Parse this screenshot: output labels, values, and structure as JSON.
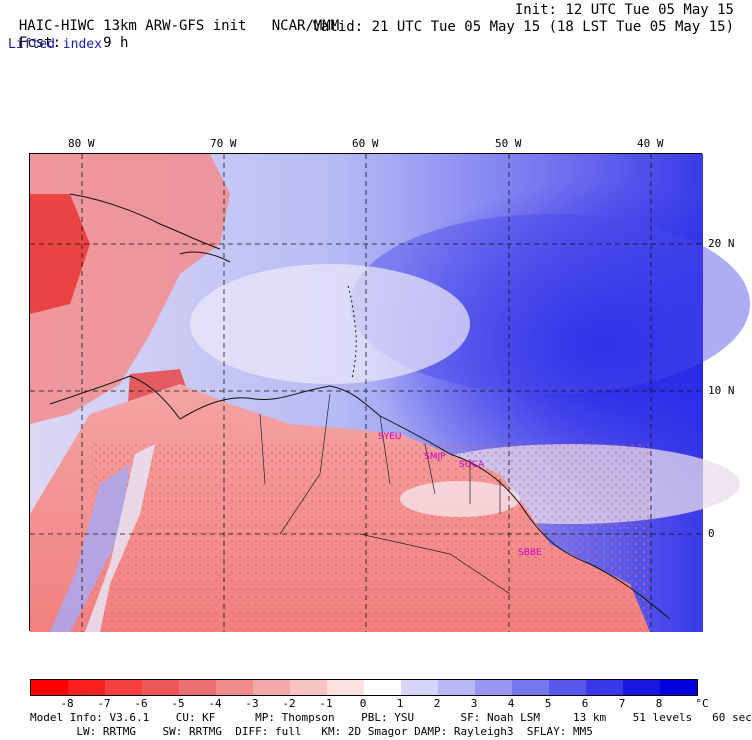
{
  "header": {
    "model": "HAIC-HIWC 13km ARW-GFS init",
    "org": "NCAR/MMM",
    "init": "Init: 12 UTC Tue 05 May 15",
    "fcst_label": "Fcst:",
    "fcst_value": "9 h",
    "valid": "Valid: 21 UTC Tue 05 May 15 (18 LST Tue 05 May 15)",
    "field": "Lifted index"
  },
  "map": {
    "lon_labels": [
      "80 W",
      "70 W",
      "60 W",
      "50 W",
      "40 W"
    ],
    "lat_labels": [
      "20 N",
      "10 N",
      "0"
    ],
    "cities": [
      "SYEU",
      "SMJP",
      "SOCA",
      "SBBE"
    ],
    "colors": {
      "ocean_strong": "#2a2aee",
      "ocean_mid": "#6a6af0",
      "ocean_light": "#c8ccf8",
      "land_warm": "#f28c8c",
      "land_hot": "#e83a3a",
      "near_zero": "#f6eef2"
    }
  },
  "colorbar": {
    "labels": [
      "-8",
      "-7",
      "-6",
      "-5",
      "-4",
      "-3",
      "-2",
      "-1",
      "0",
      "1",
      "2",
      "3",
      "4",
      "5",
      "6",
      "7",
      "8"
    ],
    "unit": "°C",
    "colors": [
      "#ff0000",
      "#fa2020",
      "#f54040",
      "#f05858",
      "#ee7070",
      "#f28c8c",
      "#f5a8a8",
      "#f8c4c4",
      "#fbe0e0",
      "#ffffff",
      "#d6d6fa",
      "#b8b8f6",
      "#9898f2",
      "#7878ee",
      "#5858ea",
      "#3838e6",
      "#1818e2",
      "#0000dd"
    ]
  },
  "footer": {
    "line1": "Model Info: V3.6.1    CU: KF      MP: Thompson    PBL: YSU       SF: Noah LSM     13 km    51 levels   60 sec",
    "line2": "       LW: RRTMG    SW: RRTMG  DIFF: full   KM: 2D Smagor DAMP: Rayleigh3  SFLAY: MM5"
  }
}
